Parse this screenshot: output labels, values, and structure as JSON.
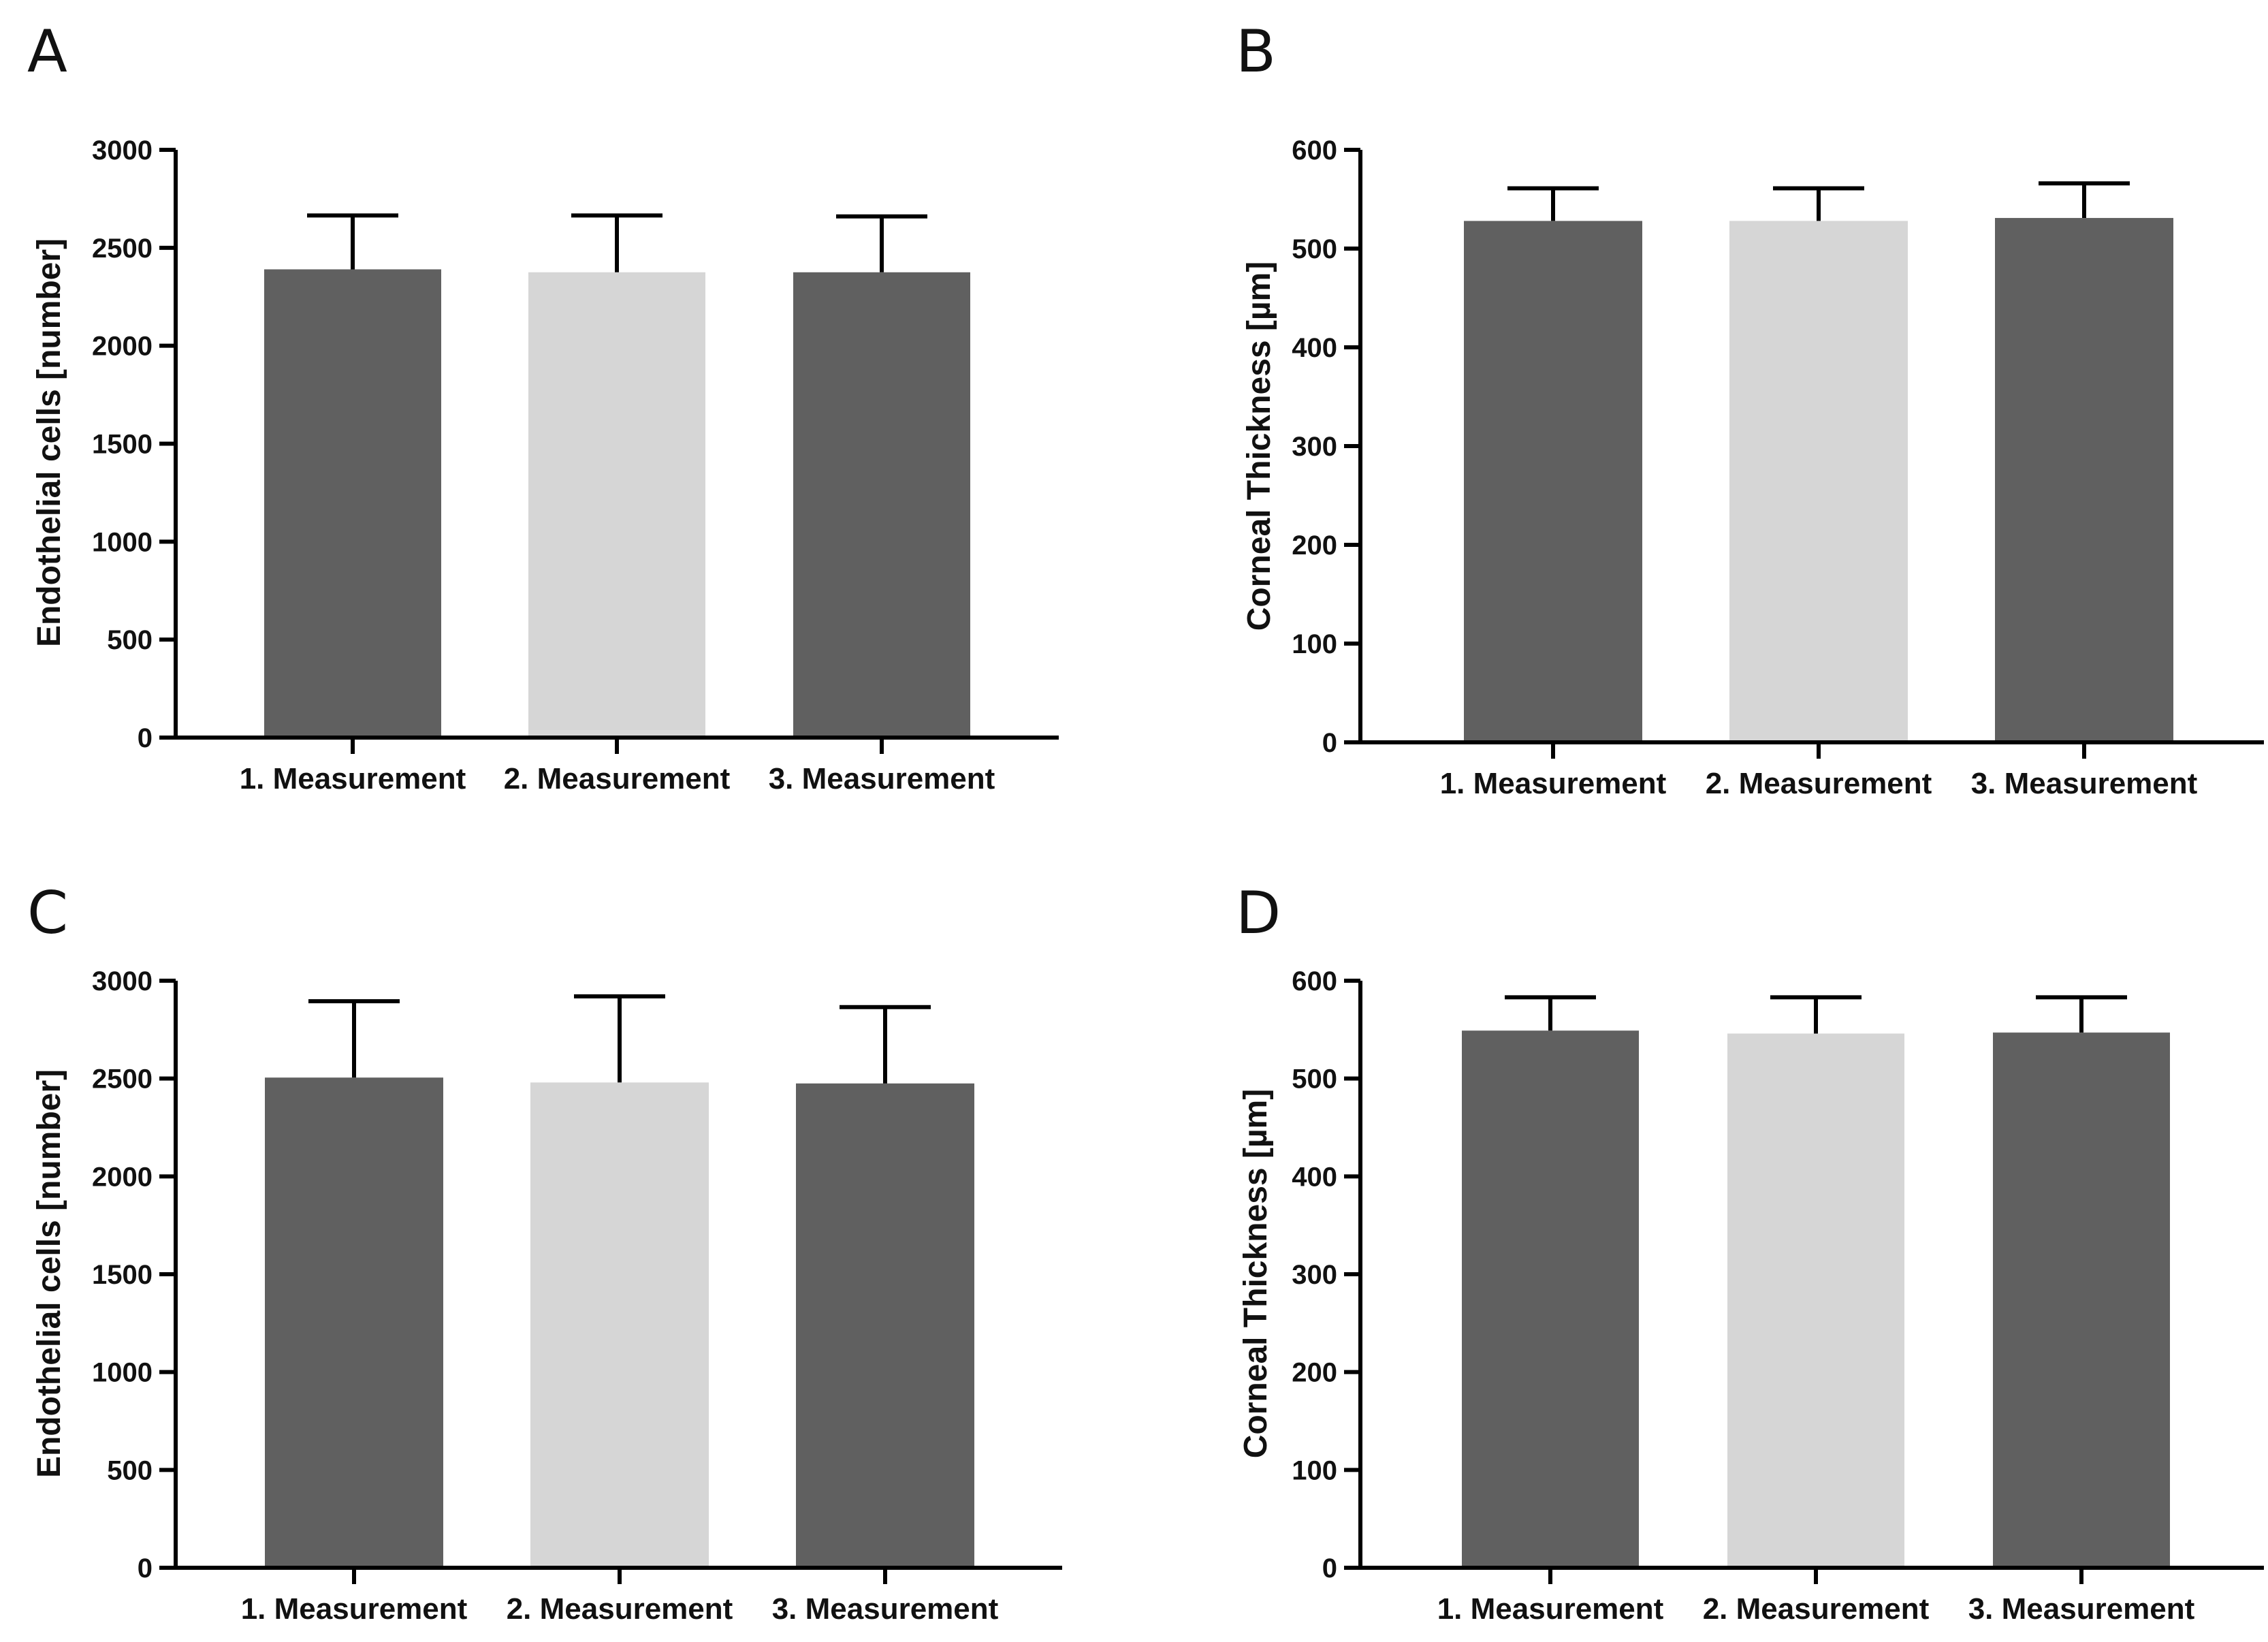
{
  "colors": {
    "dark": "#606060",
    "light": "#d6d6d6",
    "axis": "#000000"
  },
  "chart_data": [
    {
      "panel": "A",
      "type": "bar",
      "categories": [
        "1. Measurement",
        "2. Measurement",
        "3. Measurement"
      ],
      "values": [
        2390,
        2375,
        2375
      ],
      "error_upper": [
        2665,
        2665,
        2660
      ],
      "ylabel": "Endothelial cells [number]",
      "xlabel": "",
      "ylim": [
        0,
        3000
      ],
      "yticks": [
        0,
        500,
        1000,
        1500,
        2000,
        2500,
        3000
      ],
      "bar_colors": [
        "dark",
        "light",
        "dark"
      ]
    },
    {
      "panel": "B",
      "type": "bar",
      "categories": [
        "1. Measurement",
        "2. Measurement",
        "3. Measurement"
      ],
      "values": [
        528,
        528,
        531
      ],
      "error_upper": [
        561,
        561,
        566
      ],
      "ylabel": "Corneal Thickness [µm]",
      "xlabel": "",
      "ylim": [
        0,
        600
      ],
      "yticks": [
        0,
        100,
        200,
        300,
        400,
        500,
        600
      ],
      "bar_colors": [
        "dark",
        "light",
        "dark"
      ]
    },
    {
      "panel": "C",
      "type": "bar",
      "categories": [
        "1. Measurement",
        "2. Measurement",
        "3. Measurement"
      ],
      "values": [
        2505,
        2480,
        2475
      ],
      "error_upper": [
        2895,
        2920,
        2865
      ],
      "ylabel": "Endothelial cells [number]",
      "xlabel": "",
      "ylim": [
        0,
        3000
      ],
      "yticks": [
        0,
        500,
        1000,
        1500,
        2000,
        2500,
        3000
      ],
      "bar_colors": [
        "dark",
        "light",
        "dark"
      ]
    },
    {
      "panel": "D",
      "type": "bar",
      "categories": [
        "1. Measurement",
        "2. Measurement",
        "3. Measurement"
      ],
      "values": [
        549,
        546,
        547
      ],
      "error_upper": [
        583,
        583,
        583
      ],
      "ylabel": "Corneal Thickness [µm]",
      "xlabel": "",
      "ylim": [
        0,
        600
      ],
      "yticks": [
        0,
        100,
        200,
        300,
        400,
        500,
        600
      ],
      "bar_colors": [
        "dark",
        "light",
        "dark"
      ]
    }
  ]
}
